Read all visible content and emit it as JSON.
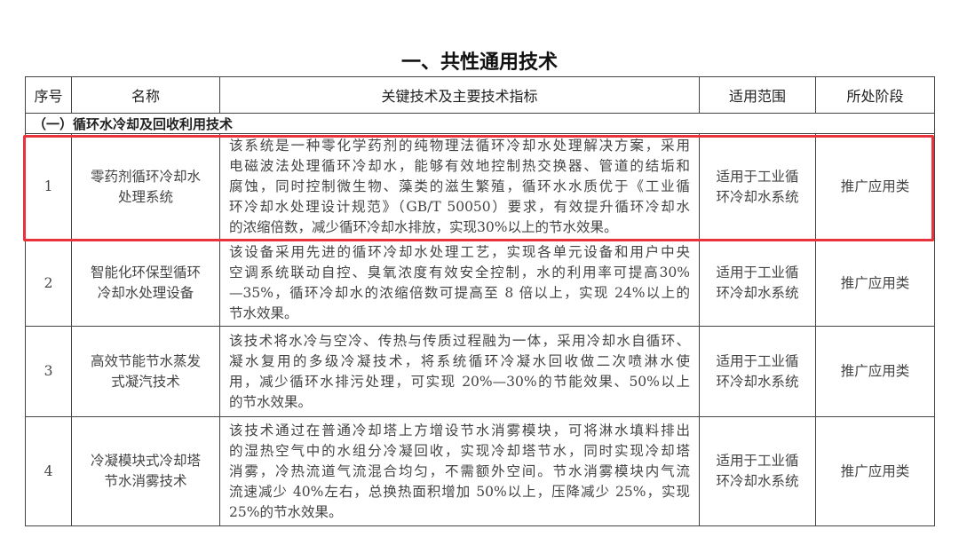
{
  "title": "一、共性通用技术",
  "headers": [
    "序号",
    "名称",
    "关键技术及主要技术指标",
    "适用范围",
    "所处阶段"
  ],
  "section": "（一）循环水冷却及回收利用技术",
  "highlight_color": "#e8333c",
  "rows": [
    {
      "no": "1",
      "name": [
        "零药剂循环冷却水",
        "处理系统"
      ],
      "desc": [
        "该系统是一种零化学药剂的纯物理法循环冷却水处理解决方案，采用",
        "电磁波法处理循环冷却水，能够有效地控制热交换器、管道的结垢和",
        "腐蚀，同时控制微生物、藻类的滋生繁殖，循环水水质优于《工业循",
        "环冷却水处理设计规范》（GB/T 50050）要求，有效提升循环冷却水",
        "的浓缩倍数，减少循环冷却水排放，实现30%以上的节水效果。"
      ],
      "scope": [
        "适用于工业循",
        "环冷却水系统"
      ],
      "stage": "推广应用类"
    },
    {
      "no": "2",
      "name": [
        "智能化环保型循环",
        "冷却水处理设备"
      ],
      "desc": [
        "该设备采用先进的循环冷却水处理工艺，实现各单元设备和用户中央",
        "空调系统联动自控、臭氧浓度有效安全控制，水的利用率可提高30%",
        "—35%，循环冷却水的浓缩倍数可提高至 8 倍以上，实现 24%以上的",
        "节水效果。"
      ],
      "scope": [
        "适用于工业循",
        "环冷却水系统"
      ],
      "stage": "推广应用类"
    },
    {
      "no": "3",
      "name": [
        "高效节能节水蒸发",
        "式凝汽技术"
      ],
      "desc": [
        "该技术将水冷与空冷、传热与传质过程融为一体，采用冷却水自循环、",
        "凝水复用的多级冷凝技术，将系统循环冷凝水回收做二次喷淋水使",
        "用，减少循环水排污处理，可实现 20%—30%的节能效果、50%以上",
        "的节水效果。"
      ],
      "scope": [
        "适用于工业循",
        "环冷却水系统"
      ],
      "stage": "推广应用类"
    },
    {
      "no": "4",
      "name": [
        "冷凝模块式冷却塔",
        "节水消雾技术"
      ],
      "desc": [
        "该技术通过在普通冷却塔上方增设节水消雾模块，可将淋水填料排出",
        "的湿热空气中的水组分冷凝回收，实现冷却塔节水，同时实现冷却塔",
        "消雾，冷热流道气流混合均匀，不需额外空间。节水消雾模块内气流",
        "流速减少 40%左右，总换热面积增加 50%以上，压降减少 25%，实现",
        "25%的节水效果。"
      ],
      "scope": [
        "适用于工业循",
        "环冷却水系统"
      ],
      "stage": "推广应用类"
    }
  ]
}
